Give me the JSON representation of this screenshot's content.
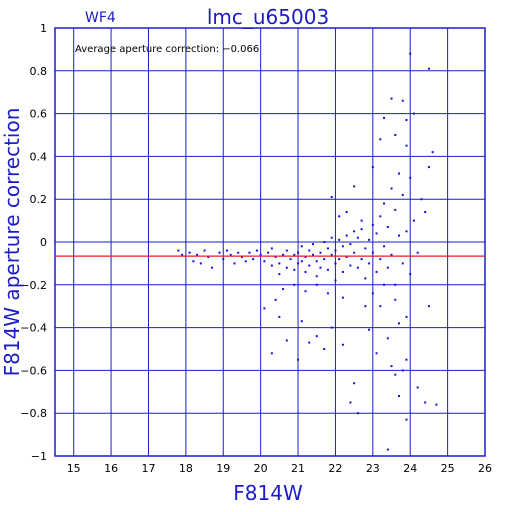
{
  "chart_data": {
    "type": "scatter",
    "title": "lmc_u65003",
    "corner_label": "WF4",
    "annotation": "Average aperture correction: −0.066",
    "xlabel": "F814W",
    "ylabel": "F814W aperture correction",
    "xlim": [
      14.5,
      26
    ],
    "ylim": [
      -1,
      1
    ],
    "xticks": [
      "15",
      "16",
      "17",
      "18",
      "19",
      "20",
      "21",
      "22",
      "23",
      "24",
      "25",
      "26"
    ],
    "yticks": [
      "1",
      "0.8",
      "0.6",
      "0.4",
      "0.2",
      "0",
      "−0.2",
      "−0.4",
      "−0.6",
      "−0.8",
      "−1"
    ],
    "grid": true,
    "reference_line_y": -0.066,
    "colors": {
      "axes": "#1c1cc8",
      "points": "#1010e0",
      "reference_line": "#e02020",
      "text": "#000000"
    },
    "points": [
      [
        17.8,
        -0.04
      ],
      [
        17.9,
        -0.06
      ],
      [
        18.1,
        -0.05
      ],
      [
        18.2,
        -0.09
      ],
      [
        18.3,
        -0.06
      ],
      [
        18.4,
        -0.1
      ],
      [
        18.5,
        -0.04
      ],
      [
        18.6,
        -0.07
      ],
      [
        18.7,
        -0.12
      ],
      [
        18.9,
        -0.05
      ],
      [
        19.0,
        -0.08
      ],
      [
        19.1,
        -0.04
      ],
      [
        19.2,
        -0.06
      ],
      [
        19.3,
        -0.1
      ],
      [
        19.4,
        -0.05
      ],
      [
        19.5,
        -0.07
      ],
      [
        19.6,
        -0.09
      ],
      [
        19.7,
        -0.05
      ],
      [
        19.8,
        -0.08
      ],
      [
        19.9,
        -0.04
      ],
      [
        20.0,
        -0.06
      ],
      [
        20.1,
        -0.09
      ],
      [
        20.2,
        -0.05
      ],
      [
        20.3,
        -0.11
      ],
      [
        20.3,
        -0.03
      ],
      [
        20.4,
        -0.07
      ],
      [
        20.5,
        -0.1
      ],
      [
        20.5,
        -0.15
      ],
      [
        20.6,
        -0.06
      ],
      [
        20.7,
        -0.04
      ],
      [
        20.7,
        -0.12
      ],
      [
        20.8,
        -0.08
      ],
      [
        20.9,
        -0.06
      ],
      [
        20.9,
        -0.13
      ],
      [
        21.0,
        -0.05
      ],
      [
        21.0,
        -0.1
      ],
      [
        21.1,
        -0.02
      ],
      [
        21.1,
        -0.09
      ],
      [
        21.2,
        -0.07
      ],
      [
        21.2,
        -0.14
      ],
      [
        21.3,
        -0.04
      ],
      [
        21.3,
        -0.11
      ],
      [
        21.4,
        -0.06
      ],
      [
        21.4,
        -0.01
      ],
      [
        21.5,
        -0.09
      ],
      [
        21.5,
        -0.16
      ],
      [
        21.6,
        -0.05
      ],
      [
        21.6,
        -0.12
      ],
      [
        21.7,
        0.0
      ],
      [
        21.7,
        -0.08
      ],
      [
        21.8,
        -0.03
      ],
      [
        21.8,
        -0.13
      ],
      [
        21.9,
        -0.06
      ],
      [
        21.9,
        0.02
      ],
      [
        22.0,
        -0.1
      ],
      [
        22.0,
        -0.04
      ],
      [
        22.0,
        -0.18
      ],
      [
        22.1,
        0.01
      ],
      [
        22.1,
        -0.08
      ],
      [
        22.2,
        -0.02
      ],
      [
        22.2,
        -0.14
      ],
      [
        22.3,
        0.03
      ],
      [
        22.3,
        -0.07
      ],
      [
        22.4,
        -0.11
      ],
      [
        22.4,
        -0.01
      ],
      [
        22.5,
        0.05
      ],
      [
        22.5,
        -0.05
      ],
      [
        22.6,
        -0.12
      ],
      [
        22.6,
        0.02
      ],
      [
        22.7,
        -0.08
      ],
      [
        22.7,
        0.06
      ],
      [
        22.8,
        -0.03
      ],
      [
        22.8,
        -0.17
      ],
      [
        22.9,
        0.01
      ],
      [
        22.9,
        -0.1
      ],
      [
        23.0,
        0.08
      ],
      [
        23.0,
        -0.05
      ],
      [
        23.1,
        -0.14
      ],
      [
        23.1,
        0.04
      ],
      [
        23.2,
        -0.08
      ],
      [
        23.2,
        0.12
      ],
      [
        23.3,
        -0.02
      ],
      [
        23.3,
        0.18
      ],
      [
        23.4,
        -0.12
      ],
      [
        23.4,
        0.07
      ],
      [
        23.5,
        0.25
      ],
      [
        23.5,
        -0.06
      ],
      [
        23.6,
        0.15
      ],
      [
        23.6,
        -0.2
      ],
      [
        23.7,
        0.03
      ],
      [
        23.7,
        0.32
      ],
      [
        23.8,
        -0.1
      ],
      [
        23.8,
        0.22
      ],
      [
        23.9,
        0.05
      ],
      [
        23.9,
        0.45
      ],
      [
        24.0,
        -0.15
      ],
      [
        24.0,
        0.3
      ],
      [
        24.1,
        0.6
      ],
      [
        24.1,
        0.1
      ],
      [
        24.0,
        0.88
      ],
      [
        24.5,
        0.81
      ],
      [
        24.6,
        0.42
      ],
      [
        24.5,
        0.35
      ],
      [
        24.5,
        -0.3
      ],
      [
        24.4,
        0.14
      ],
      [
        24.2,
        -0.05
      ],
      [
        24.3,
        0.2
      ],
      [
        23.8,
        0.66
      ],
      [
        23.5,
        0.67
      ],
      [
        23.3,
        0.58
      ],
      [
        23.9,
        0.57
      ],
      [
        23.6,
        0.5
      ],
      [
        23.5,
        -0.58
      ],
      [
        23.6,
        -0.62
      ],
      [
        23.4,
        -0.45
      ],
      [
        23.7,
        -0.38
      ],
      [
        23.9,
        -0.55
      ],
      [
        23.2,
        -0.3
      ],
      [
        23.1,
        -0.52
      ],
      [
        22.9,
        -0.41
      ],
      [
        22.5,
        -0.66
      ],
      [
        22.4,
        -0.75
      ],
      [
        22.6,
        -0.8
      ],
      [
        22.2,
        -0.48
      ],
      [
        21.9,
        -0.4
      ],
      [
        21.7,
        -0.5
      ],
      [
        21.5,
        -0.44
      ],
      [
        21.3,
        -0.47
      ],
      [
        21.1,
        -0.37
      ],
      [
        21.0,
        -0.55
      ],
      [
        20.7,
        -0.46
      ],
      [
        20.5,
        -0.35
      ],
      [
        20.4,
        -0.27
      ],
      [
        20.3,
        -0.52
      ],
      [
        20.1,
        -0.31
      ],
      [
        21.9,
        0.21
      ],
      [
        22.1,
        0.12
      ],
      [
        22.3,
        0.14
      ],
      [
        22.5,
        0.26
      ],
      [
        22.7,
        0.1
      ],
      [
        22.2,
        -0.26
      ],
      [
        21.8,
        -0.24
      ],
      [
        21.5,
        -0.2
      ],
      [
        21.2,
        -0.23
      ],
      [
        20.9,
        -0.2
      ],
      [
        20.6,
        -0.22
      ],
      [
        22.8,
        -0.3
      ],
      [
        23.0,
        -0.24
      ],
      [
        23.3,
        -0.2
      ],
      [
        23.6,
        -0.27
      ],
      [
        23.9,
        -0.35
      ],
      [
        24.2,
        -0.68
      ],
      [
        24.4,
        -0.75
      ],
      [
        24.7,
        -0.76
      ],
      [
        23.9,
        -0.83
      ],
      [
        23.4,
        -0.97
      ],
      [
        23.8,
        -0.6
      ],
      [
        23.7,
        -0.72
      ],
      [
        23.2,
        0.48
      ],
      [
        23.0,
        0.35
      ]
    ]
  }
}
